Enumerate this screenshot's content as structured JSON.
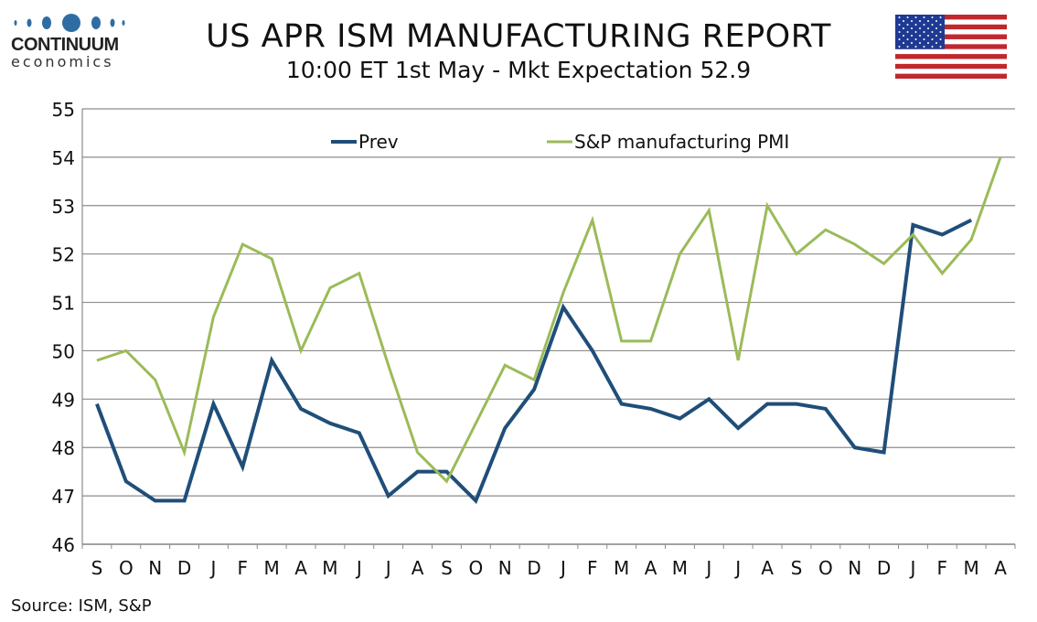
{
  "header": {
    "title": "US APR ISM MANUFACTURING REPORT",
    "subtitle": "10:00 ET 1st May - Mkt Expectation 52.9"
  },
  "logo": {
    "line1": "CONTINUUM",
    "line2": "economics",
    "color": "#2e6da4"
  },
  "flag": "us-flag",
  "source": "Source: ISM, S&P",
  "chart_data": {
    "type": "line",
    "title": "",
    "xlabel": "",
    "ylabel": "",
    "categories": [
      "S",
      "O",
      "N",
      "D",
      "J",
      "F",
      "M",
      "A",
      "M",
      "J",
      "J",
      "A",
      "S",
      "O",
      "N",
      "D",
      "J",
      "F",
      "M",
      "A",
      "M",
      "J",
      "J",
      "A",
      "S",
      "O",
      "N",
      "D",
      "J",
      "F",
      "M",
      "A"
    ],
    "ylim": [
      46,
      55
    ],
    "yticks": [
      46,
      47,
      48,
      49,
      50,
      51,
      52,
      53,
      54,
      55
    ],
    "grid": true,
    "legend": "top",
    "series": [
      {
        "name": "Prev",
        "color": "#1f4e79",
        "values": [
          48.9,
          47.3,
          46.9,
          46.9,
          48.9,
          47.6,
          49.8,
          48.8,
          48.5,
          48.3,
          47.0,
          47.5,
          47.5,
          46.9,
          48.4,
          49.2,
          50.9,
          50.0,
          48.9,
          48.8,
          48.6,
          49.0,
          48.4,
          48.9,
          48.9,
          48.8,
          48.0,
          47.9,
          52.6,
          52.4,
          52.7,
          null
        ]
      },
      {
        "name": "S&P manufacturing PMI",
        "color": "#9bbb59",
        "values": [
          49.8,
          50.0,
          49.4,
          47.9,
          50.7,
          52.2,
          51.9,
          50.0,
          51.3,
          51.6,
          49.7,
          47.9,
          47.3,
          48.5,
          49.7,
          49.4,
          51.2,
          52.7,
          50.2,
          50.2,
          52.0,
          52.9,
          49.8,
          53.0,
          52.0,
          52.5,
          52.2,
          51.8,
          52.4,
          51.6,
          52.3,
          54.0
        ]
      }
    ]
  }
}
